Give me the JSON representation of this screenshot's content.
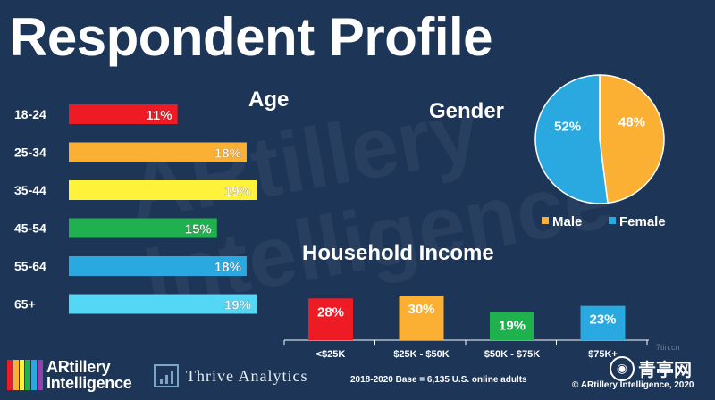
{
  "header": {
    "title": "Respondent Profile"
  },
  "watermark_text": "ARtillery\nIntelligence",
  "chart_data": [
    {
      "type": "bar",
      "orientation": "horizontal",
      "title": "Age",
      "categories": [
        "18-24",
        "25-34",
        "35-44",
        "45-54",
        "55-64",
        "65+"
      ],
      "values": [
        11,
        18,
        19,
        15,
        18,
        19
      ],
      "value_labels": [
        "11%",
        "18%",
        "19%",
        "15%",
        "18%",
        "19%"
      ],
      "colors": [
        "#ef1b24",
        "#fbb034",
        "#fff23a",
        "#1fb14d",
        "#29a9e0",
        "#54d6f5"
      ]
    },
    {
      "type": "pie",
      "title": "Gender",
      "categories": [
        "Male",
        "Female"
      ],
      "values": [
        48,
        52
      ],
      "value_labels": [
        "48%",
        "52%"
      ],
      "colors": [
        "#fbb034",
        "#29a9e0"
      ],
      "legend": "bottom"
    },
    {
      "type": "bar",
      "title": "Household Income",
      "categories": [
        "<$25K",
        "$25K - $50K",
        "$50K - $75K",
        "$75K+"
      ],
      "values": [
        28,
        30,
        19,
        23
      ],
      "value_labels": [
        "28%",
        "30%",
        "19%",
        "23%"
      ],
      "colors": [
        "#ef1b24",
        "#fbb034",
        "#1fb14d",
        "#29a9e0"
      ]
    }
  ],
  "footer": {
    "logo_text_1": "ARtillery",
    "logo_text_2": "Intelligence",
    "thrive": "Thrive Analytics",
    "base_note": "2018-2020 Base = 6,135 U.S. online adults",
    "copyright": "© ARtillery Intelligence, 2020",
    "corner_mark": "青亭网",
    "corner_url": "7tin.cn"
  }
}
